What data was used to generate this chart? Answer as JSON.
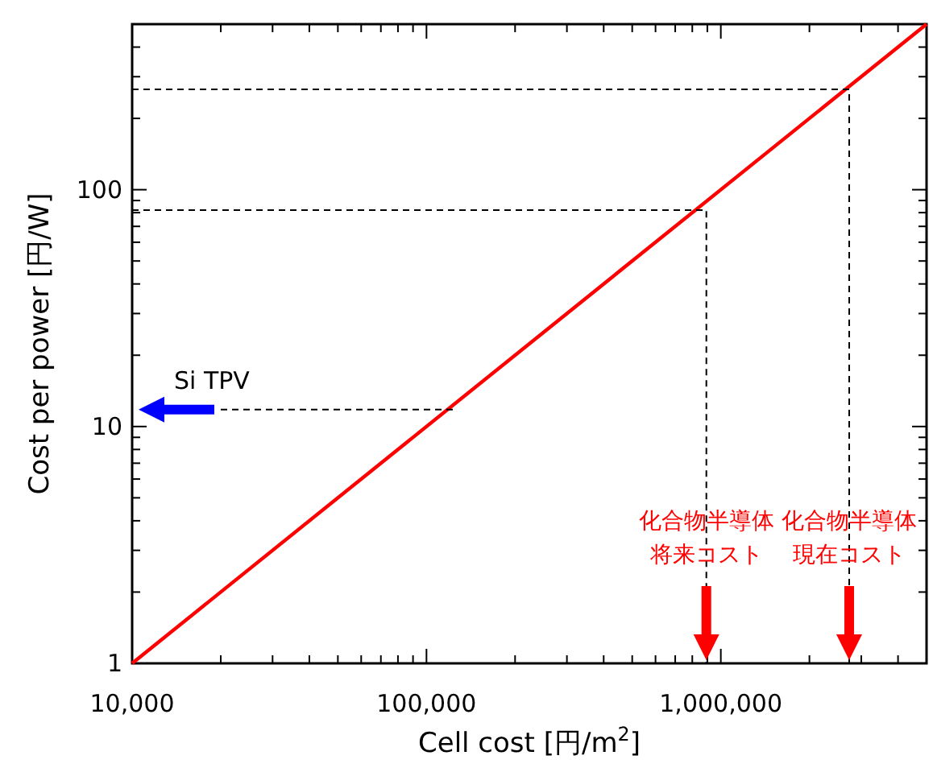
{
  "chart_data": {
    "type": "line",
    "xlabel": "Cell cost [円/m$^{2}$]",
    "ylabel": "Cost per power [円/W]",
    "log": "xy",
    "grid": false,
    "marker": "none",
    "xlim": [
      10000,
      5000000
    ],
    "ylim": [
      1,
      500
    ],
    "xticks": [
      {
        "value": 10000,
        "label": "10,000"
      },
      {
        "value": 100000,
        "label": "100,000"
      },
      {
        "value": 1000000,
        "label": "1,000,000"
      }
    ],
    "yticks": [
      1,
      10,
      100
    ],
    "series": [
      {
        "color": "#ff0000",
        "line_style": "solid",
        "x": [
          10000,
          5000000
        ],
        "values": [
          1,
          500
        ]
      },
      {
        "color": "#000000",
        "line_style": "dashed",
        "x": [
          20000,
          127000
        ],
        "values": [
          11.8,
          11.8
        ]
      },
      {
        "color": "#000000",
        "line_style": "dashed",
        "x": [
          10000,
          893000,
          893000
        ],
        "values": [
          82,
          82,
          1
        ]
      },
      {
        "color": "#000000",
        "line_style": "dashed",
        "x": [
          10000,
          2730000,
          2730000
        ],
        "values": [
          265,
          265,
          1
        ]
      }
    ],
    "annotations": [
      "Si TPV",
      "化合物半導体",
      "将来コスト",
      "化合物半導体",
      "現在コスト"
    ]
  }
}
